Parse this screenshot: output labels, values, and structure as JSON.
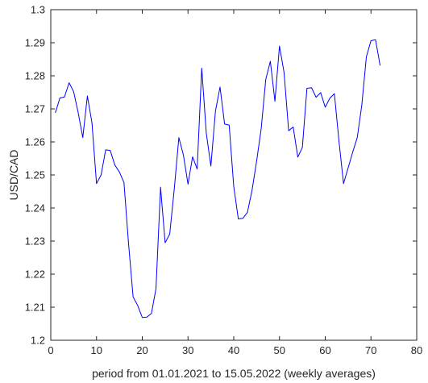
{
  "chart_data": {
    "type": "line",
    "xlabel": "period from 01.01.2021 to 15.05.2022 (weekly averages)",
    "ylabel": "USD/CAD",
    "xlim": [
      0,
      80
    ],
    "ylim": [
      1.2,
      1.3
    ],
    "x_ticks": [
      0,
      10,
      20,
      30,
      40,
      50,
      60,
      70,
      80
    ],
    "y_ticks": [
      1.2,
      1.21,
      1.22,
      1.23,
      1.24,
      1.25,
      1.26,
      1.27,
      1.28,
      1.29,
      1.3
    ],
    "x_tick_labels": [
      "0",
      "10",
      "20",
      "30",
      "40",
      "50",
      "60",
      "70",
      "80"
    ],
    "y_tick_labels": [
      "1.2",
      "1.21",
      "1.22",
      "1.23",
      "1.24",
      "1.25",
      "1.26",
      "1.27",
      "1.28",
      "1.29",
      "1.3"
    ],
    "grid": false,
    "line_color": "#0000ff",
    "series": [
      {
        "x": [
          1,
          2,
          3,
          4,
          5,
          6,
          7,
          8,
          9,
          10,
          11,
          12,
          13,
          14,
          15,
          16,
          17,
          18,
          19,
          20,
          21,
          22,
          23,
          24,
          25,
          26,
          27,
          28,
          29,
          30,
          31,
          32,
          33,
          34,
          35,
          36,
          37,
          38,
          39,
          40,
          41,
          42,
          43,
          44,
          45,
          46,
          47,
          48,
          49,
          50,
          51,
          52,
          53,
          54,
          55,
          56,
          57,
          58,
          59,
          60,
          61,
          62,
          63,
          64,
          65,
          66,
          67,
          68,
          69,
          70,
          71,
          72
        ],
        "values": [
          1.2688,
          1.2733,
          1.2736,
          1.2779,
          1.2752,
          1.2688,
          1.2613,
          1.2739,
          1.2658,
          1.2474,
          1.25,
          1.2576,
          1.2574,
          1.253,
          1.2509,
          1.2477,
          1.2293,
          1.2131,
          1.2105,
          1.2069,
          1.207,
          1.2081,
          1.2156,
          1.2463,
          1.2295,
          1.2321,
          1.2458,
          1.2613,
          1.256,
          1.2472,
          1.2555,
          1.2518,
          1.2823,
          1.2626,
          1.2527,
          1.2693,
          1.2766,
          1.2654,
          1.2651,
          1.2465,
          1.2367,
          1.2369,
          1.2387,
          1.2454,
          1.2542,
          1.264,
          1.2789,
          1.2844,
          1.2723,
          1.289,
          1.281,
          1.2634,
          1.2645,
          1.2554,
          1.2583,
          1.2762,
          1.2764,
          1.2735,
          1.2749,
          1.2705,
          1.2732,
          1.2746,
          1.2603,
          1.2474,
          1.2521,
          1.2569,
          1.2613,
          1.2712,
          1.2858,
          1.2906,
          1.2909,
          1.2831
        ]
      }
    ]
  }
}
